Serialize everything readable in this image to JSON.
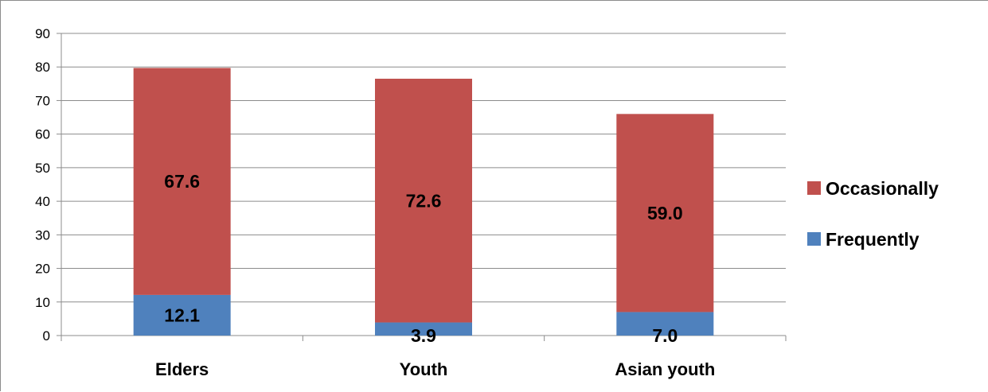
{
  "chart_data": {
    "type": "bar",
    "stacked": true,
    "categories": [
      "Elders",
      "Youth",
      "Asian youth"
    ],
    "series": [
      {
        "name": "Frequently",
        "values": [
          12.1,
          3.9,
          7.0
        ],
        "labels": [
          "12.1",
          "3.9",
          "7.0"
        ],
        "color": "#4f81bd"
      },
      {
        "name": "Occasionally",
        "values": [
          67.6,
          72.6,
          59.0
        ],
        "labels": [
          "67.6",
          "72.6",
          "59.0"
        ],
        "color": "#c0504d"
      }
    ],
    "y_ticks": [
      "0",
      "10",
      "20",
      "30",
      "40",
      "50",
      "60",
      "70",
      "80",
      "90"
    ],
    "ylim": [
      0,
      90
    ],
    "grid": true,
    "legend_position": "right"
  }
}
